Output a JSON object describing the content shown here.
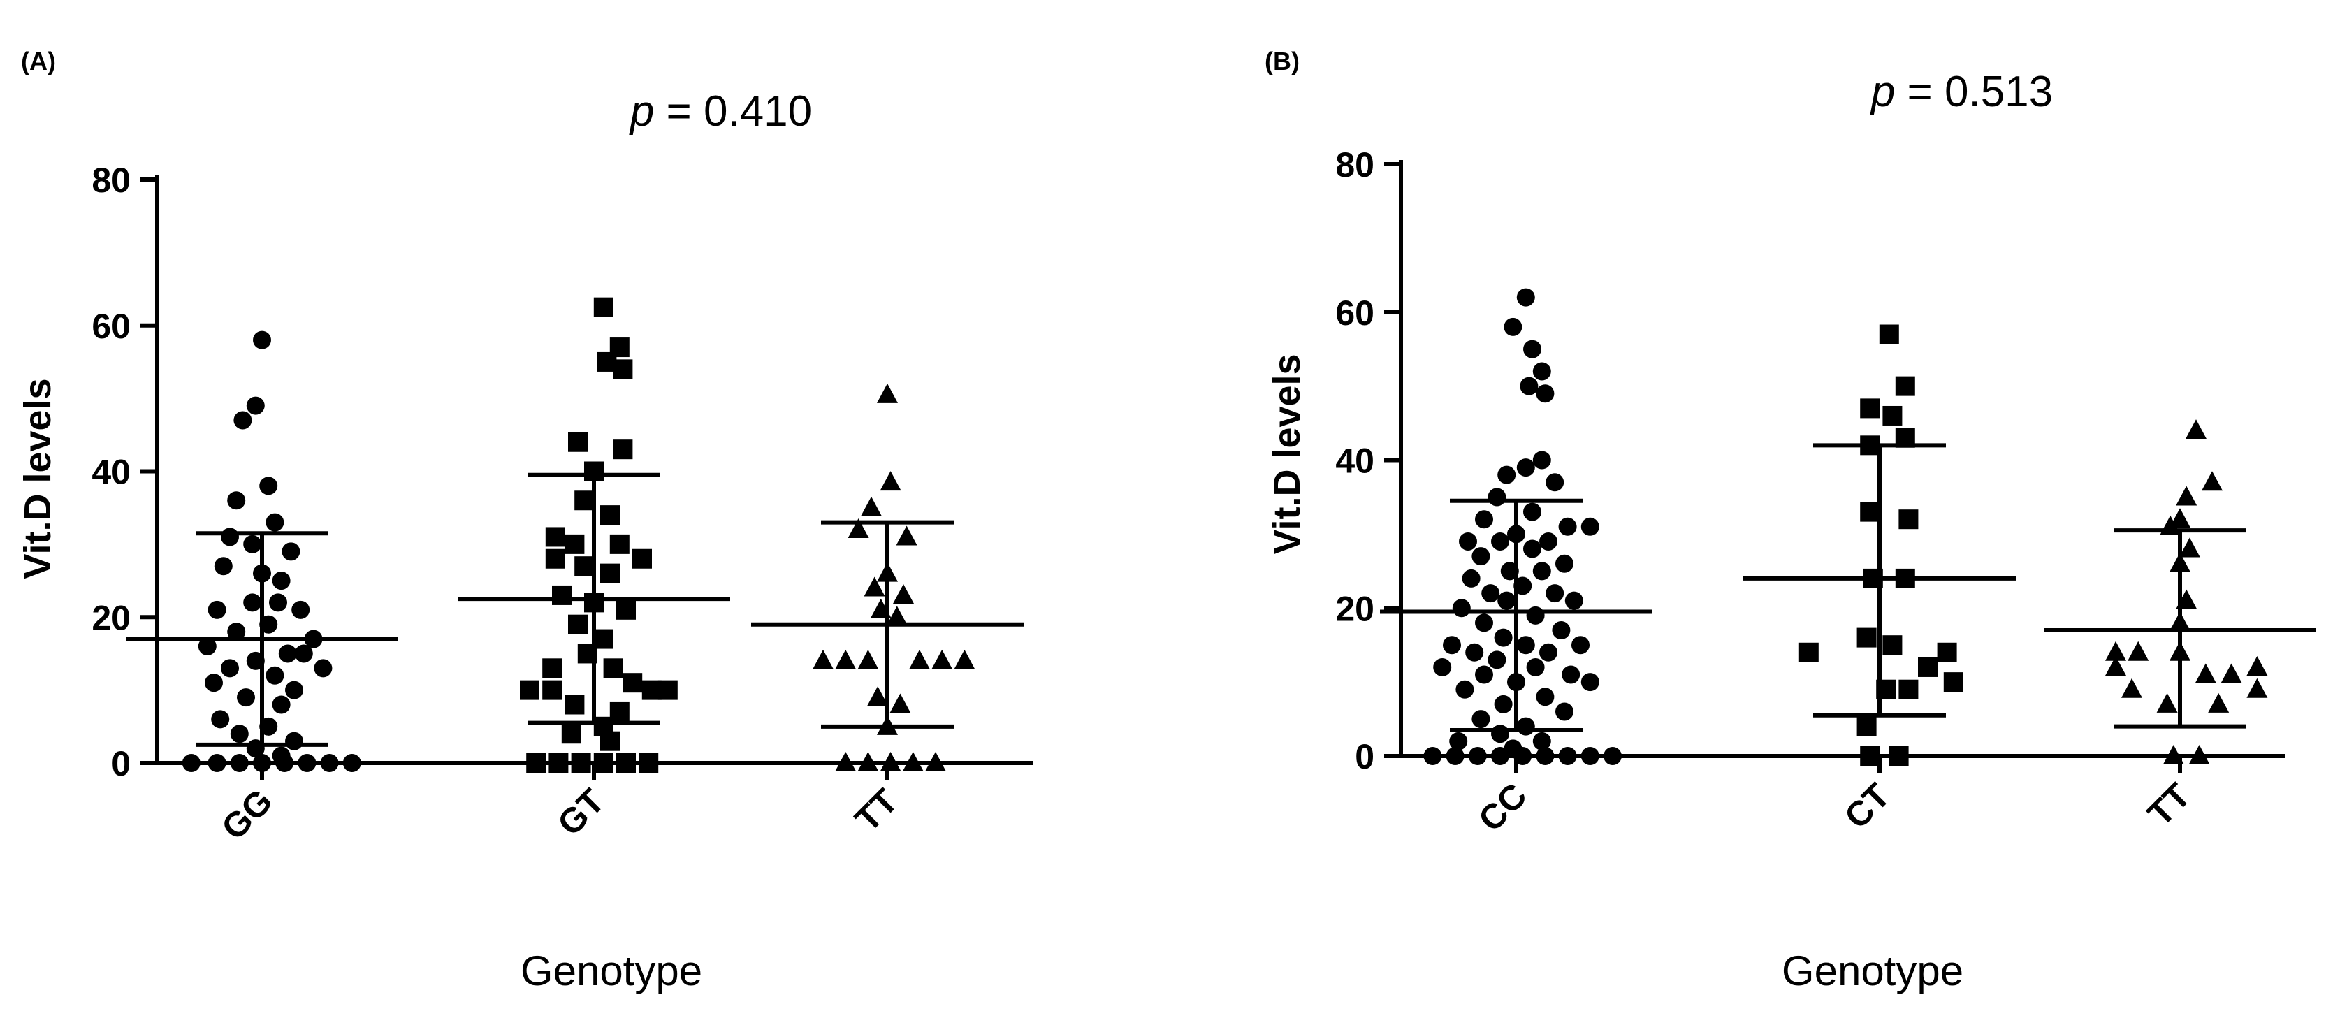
{
  "chart_data": [
    {
      "type": "scatter",
      "panel_label": "(A)",
      "p_symbol": "p",
      "p_rest": " = 0.410",
      "xlabel": "Genotype",
      "ylabel": "Vit.D levels",
      "ylim": [
        0,
        80
      ],
      "yticks": [
        0,
        20,
        40,
        60,
        80
      ],
      "categories": [
        "GG",
        "GT",
        "TT"
      ],
      "groups": [
        {
          "name": "GG",
          "marker": "circle",
          "mean": 17,
          "sd_low": 2.5,
          "sd_high": 31.5,
          "points": [
            {
              "y": 58,
              "s": 0
            },
            {
              "y": 49,
              "s": -0.2
            },
            {
              "y": 47,
              "s": -0.6
            },
            {
              "y": 38,
              "s": 0.2
            },
            {
              "y": 36,
              "s": -0.8
            },
            {
              "y": 33,
              "s": 0.4
            },
            {
              "y": 31,
              "s": -1.0
            },
            {
              "y": 30,
              "s": -0.3
            },
            {
              "y": 29,
              "s": 0.9
            },
            {
              "y": 27,
              "s": -1.2
            },
            {
              "y": 26,
              "s": 0.0
            },
            {
              "y": 25,
              "s": 0.6
            },
            {
              "y": 22,
              "s": -0.3
            },
            {
              "y": 22,
              "s": 0.5
            },
            {
              "y": 21,
              "s": -1.4
            },
            {
              "y": 21,
              "s": 1.2
            },
            {
              "y": 19,
              "s": 0.2
            },
            {
              "y": 18,
              "s": -0.8
            },
            {
              "y": 17,
              "s": 1.6
            },
            {
              "y": 16,
              "s": -1.7
            },
            {
              "y": 15,
              "s": 0.8
            },
            {
              "y": 15,
              "s": 1.3
            },
            {
              "y": 14,
              "s": -0.2
            },
            {
              "y": 13,
              "s": -1.0
            },
            {
              "y": 13,
              "s": 1.9
            },
            {
              "y": 12,
              "s": 0.4
            },
            {
              "y": 11,
              "s": -1.5
            },
            {
              "y": 10,
              "s": 1.0
            },
            {
              "y": 9,
              "s": -0.5
            },
            {
              "y": 8,
              "s": 0.6
            },
            {
              "y": 6,
              "s": -1.3
            },
            {
              "y": 5,
              "s": 0.2
            },
            {
              "y": 4,
              "s": -0.7
            },
            {
              "y": 3,
              "s": 1.0
            },
            {
              "y": 2,
              "s": -0.2
            },
            {
              "y": 1,
              "s": 0.6
            },
            {
              "y": 0,
              "s": -2.2
            },
            {
              "y": 0,
              "s": -1.4
            },
            {
              "y": 0,
              "s": -0.7
            },
            {
              "y": 0,
              "s": 0.0
            },
            {
              "y": 0,
              "s": 0.7
            },
            {
              "y": 0,
              "s": 1.4
            },
            {
              "y": 0,
              "s": 2.1
            },
            {
              "y": 0,
              "s": 2.8
            }
          ]
        },
        {
          "name": "GT",
          "marker": "square",
          "mean": 22.5,
          "sd_low": 5.5,
          "sd_high": 39.5,
          "points": [
            {
              "y": 62.5,
              "s": 0.3
            },
            {
              "y": 57,
              "s": 0.8
            },
            {
              "y": 55,
              "s": 0.4
            },
            {
              "y": 54,
              "s": 0.9
            },
            {
              "y": 44,
              "s": -0.5
            },
            {
              "y": 43,
              "s": 0.9
            },
            {
              "y": 40,
              "s": 0.0
            },
            {
              "y": 36,
              "s": -0.3
            },
            {
              "y": 34,
              "s": 0.5
            },
            {
              "y": 31,
              "s": -1.2
            },
            {
              "y": 30,
              "s": -0.6
            },
            {
              "y": 30,
              "s": 0.8
            },
            {
              "y": 28,
              "s": -1.2
            },
            {
              "y": 28,
              "s": 1.5
            },
            {
              "y": 27,
              "s": -0.3
            },
            {
              "y": 26,
              "s": 0.5
            },
            {
              "y": 23,
              "s": -1.0
            },
            {
              "y": 22,
              "s": 0.0
            },
            {
              "y": 21,
              "s": 1.0
            },
            {
              "y": 19,
              "s": -0.5
            },
            {
              "y": 17,
              "s": 0.3
            },
            {
              "y": 15,
              "s": -0.2
            },
            {
              "y": 13,
              "s": -1.3
            },
            {
              "y": 13,
              "s": 0.6
            },
            {
              "y": 11,
              "s": 1.2
            },
            {
              "y": 10,
              "s": -2.0
            },
            {
              "y": 10,
              "s": -1.3
            },
            {
              "y": 10,
              "s": 1.8
            },
            {
              "y": 10,
              "s": 2.3
            },
            {
              "y": 8,
              "s": -0.6
            },
            {
              "y": 7,
              "s": 0.8
            },
            {
              "y": 5,
              "s": 0.3
            },
            {
              "y": 4,
              "s": -0.7
            },
            {
              "y": 3,
              "s": 0.5
            },
            {
              "y": 0,
              "s": -1.8
            },
            {
              "y": 0,
              "s": -1.1
            },
            {
              "y": 0,
              "s": -0.4
            },
            {
              "y": 0,
              "s": 0.3
            },
            {
              "y": 0,
              "s": 1.0
            },
            {
              "y": 0,
              "s": 1.7
            }
          ]
        },
        {
          "name": "TT",
          "marker": "triangle",
          "mean": 19,
          "sd_low": 5,
          "sd_high": 33,
          "points": [
            {
              "y": 50.5,
              "s": 0.0
            },
            {
              "y": 38.5,
              "s": 0.1
            },
            {
              "y": 35,
              "s": -0.5
            },
            {
              "y": 32,
              "s": -0.9
            },
            {
              "y": 31,
              "s": 0.6
            },
            {
              "y": 26,
              "s": 0.0
            },
            {
              "y": 24,
              "s": -0.4
            },
            {
              "y": 23,
              "s": 0.5
            },
            {
              "y": 21,
              "s": -0.2
            },
            {
              "y": 20,
              "s": 0.3
            },
            {
              "y": 14,
              "s": -2.0
            },
            {
              "y": 14,
              "s": -1.3
            },
            {
              "y": 14,
              "s": -0.6
            },
            {
              "y": 14,
              "s": 1.0
            },
            {
              "y": 14,
              "s": 1.7
            },
            {
              "y": 14,
              "s": 2.4
            },
            {
              "y": 9,
              "s": -0.3
            },
            {
              "y": 8,
              "s": 0.4
            },
            {
              "y": 5,
              "s": 0.0
            },
            {
              "y": 0,
              "s": -1.3
            },
            {
              "y": 0,
              "s": -0.6
            },
            {
              "y": 0,
              "s": 0.1
            },
            {
              "y": 0,
              "s": 0.8
            },
            {
              "y": 0,
              "s": 1.5
            }
          ]
        }
      ]
    },
    {
      "type": "scatter",
      "panel_label": "(B)",
      "p_symbol": "p",
      "p_rest": " = 0.513",
      "xlabel": "Genotype",
      "ylabel": "Vit.D levels",
      "ylim": [
        0,
        80
      ],
      "yticks": [
        0,
        20,
        40,
        60,
        80
      ],
      "categories": [
        "CC",
        "CT",
        "TT"
      ],
      "groups": [
        {
          "name": "CC",
          "marker": "circle",
          "mean": 19.5,
          "sd_low": 3.5,
          "sd_high": 34.5,
          "points": [
            {
              "y": 62,
              "s": 0.3
            },
            {
              "y": 58,
              "s": -0.1
            },
            {
              "y": 55,
              "s": 0.5
            },
            {
              "y": 52,
              "s": 0.8
            },
            {
              "y": 50,
              "s": 0.4
            },
            {
              "y": 49,
              "s": 0.9
            },
            {
              "y": 40,
              "s": 0.8
            },
            {
              "y": 39,
              "s": 0.3
            },
            {
              "y": 38,
              "s": -0.3
            },
            {
              "y": 37,
              "s": 1.2
            },
            {
              "y": 35,
              "s": -0.6
            },
            {
              "y": 33,
              "s": 0.5
            },
            {
              "y": 32,
              "s": -1.0
            },
            {
              "y": 31,
              "s": 1.6
            },
            {
              "y": 31,
              "s": 2.3
            },
            {
              "y": 30,
              "s": 0.0
            },
            {
              "y": 29,
              "s": -1.5
            },
            {
              "y": 29,
              "s": -0.5
            },
            {
              "y": 29,
              "s": 1.0
            },
            {
              "y": 28,
              "s": 0.5
            },
            {
              "y": 27,
              "s": -1.1
            },
            {
              "y": 26,
              "s": 1.5
            },
            {
              "y": 25,
              "s": -0.2
            },
            {
              "y": 25,
              "s": 0.8
            },
            {
              "y": 24,
              "s": -1.4
            },
            {
              "y": 23,
              "s": 0.2
            },
            {
              "y": 22,
              "s": -0.8
            },
            {
              "y": 22,
              "s": 1.2
            },
            {
              "y": 21,
              "s": -0.3
            },
            {
              "y": 21,
              "s": 1.8
            },
            {
              "y": 20,
              "s": -1.7
            },
            {
              "y": 19,
              "s": 0.6
            },
            {
              "y": 18,
              "s": -1.0
            },
            {
              "y": 17,
              "s": 1.4
            },
            {
              "y": 16,
              "s": -0.4
            },
            {
              "y": 15,
              "s": 0.3
            },
            {
              "y": 15,
              "s": -2.0
            },
            {
              "y": 15,
              "s": 2.0
            },
            {
              "y": 14,
              "s": -1.3
            },
            {
              "y": 14,
              "s": 1.0
            },
            {
              "y": 13,
              "s": -0.6
            },
            {
              "y": 12,
              "s": 0.6
            },
            {
              "y": 12,
              "s": -2.3
            },
            {
              "y": 11,
              "s": 1.7
            },
            {
              "y": 11,
              "s": -1.0
            },
            {
              "y": 10,
              "s": 0.0
            },
            {
              "y": 10,
              "s": 2.3
            },
            {
              "y": 9,
              "s": -1.6
            },
            {
              "y": 8,
              "s": 0.9
            },
            {
              "y": 7,
              "s": -0.4
            },
            {
              "y": 6,
              "s": 1.5
            },
            {
              "y": 5,
              "s": -1.1
            },
            {
              "y": 4,
              "s": 0.3
            },
            {
              "y": 3,
              "s": -0.5
            },
            {
              "y": 2,
              "s": -1.8
            },
            {
              "y": 2,
              "s": 0.8
            },
            {
              "y": 1,
              "s": -0.1
            },
            {
              "y": 0,
              "s": -2.6
            },
            {
              "y": 0,
              "s": -1.9
            },
            {
              "y": 0,
              "s": -1.2
            },
            {
              "y": 0,
              "s": -0.5
            },
            {
              "y": 0,
              "s": 0.2
            },
            {
              "y": 0,
              "s": 0.9
            },
            {
              "y": 0,
              "s": 1.6
            },
            {
              "y": 0,
              "s": 2.3
            },
            {
              "y": 0,
              "s": 3.0
            }
          ]
        },
        {
          "name": "CT",
          "marker": "square",
          "mean": 24,
          "sd_low": 5.5,
          "sd_high": 42,
          "points": [
            {
              "y": 57,
              "s": 0.3
            },
            {
              "y": 50,
              "s": 0.8
            },
            {
              "y": 47,
              "s": -0.3
            },
            {
              "y": 46,
              "s": 0.4
            },
            {
              "y": 43,
              "s": 0.8
            },
            {
              "y": 42,
              "s": -0.3
            },
            {
              "y": 33,
              "s": -0.3
            },
            {
              "y": 32,
              "s": 0.9
            },
            {
              "y": 24,
              "s": -0.2
            },
            {
              "y": 24,
              "s": 0.8
            },
            {
              "y": 16,
              "s": -0.4
            },
            {
              "y": 15,
              "s": 0.4
            },
            {
              "y": 14,
              "s": -2.2
            },
            {
              "y": 14,
              "s": 2.1
            },
            {
              "y": 12,
              "s": 1.5
            },
            {
              "y": 10,
              "s": 2.3
            },
            {
              "y": 9,
              "s": 0.2
            },
            {
              "y": 9,
              "s": 0.9
            },
            {
              "y": 4,
              "s": -0.4
            },
            {
              "y": 0,
              "s": -0.3
            },
            {
              "y": 0,
              "s": 0.6
            }
          ]
        },
        {
          "name": "TT",
          "marker": "triangle",
          "mean": 17,
          "sd_low": 4,
          "sd_high": 30.5,
          "points": [
            {
              "y": 44,
              "s": 0.5
            },
            {
              "y": 37,
              "s": 1.0
            },
            {
              "y": 35,
              "s": 0.2
            },
            {
              "y": 32,
              "s": 0.0
            },
            {
              "y": 31,
              "s": -0.3
            },
            {
              "y": 28,
              "s": 0.3
            },
            {
              "y": 26,
              "s": 0.0
            },
            {
              "y": 21,
              "s": 0.2
            },
            {
              "y": 18,
              "s": 0.0
            },
            {
              "y": 14,
              "s": -2.0
            },
            {
              "y": 14,
              "s": -1.3
            },
            {
              "y": 14,
              "s": 0.0
            },
            {
              "y": 12,
              "s": 2.4
            },
            {
              "y": 12,
              "s": -2.0
            },
            {
              "y": 11,
              "s": 0.8
            },
            {
              "y": 11,
              "s": 1.6
            },
            {
              "y": 9,
              "s": -1.5
            },
            {
              "y": 9,
              "s": 2.4
            },
            {
              "y": 7,
              "s": -0.4
            },
            {
              "y": 7,
              "s": 1.2
            },
            {
              "y": 0,
              "s": -0.2
            },
            {
              "y": 0,
              "s": 0.6
            }
          ]
        }
      ]
    }
  ]
}
